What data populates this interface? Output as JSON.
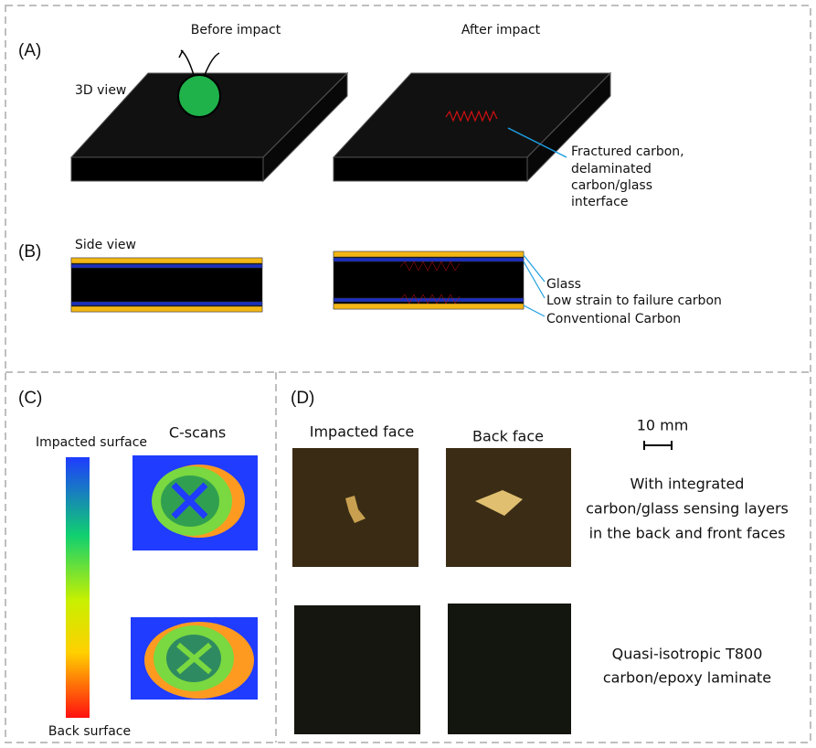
{
  "panel_a": {
    "label": "(A)",
    "before_title": "Before impact",
    "after_title": "After impact",
    "view_label": "3D view",
    "annotation_lines": [
      "Fractured carbon,",
      "delaminated",
      "carbon/glass",
      "interface"
    ]
  },
  "panel_b": {
    "label": "(B)",
    "view_label": "Side view",
    "layer_labels": [
      "Glass",
      "Low strain to failure carbon",
      "Conventional Carbon"
    ]
  },
  "panel_c": {
    "label": "(C)",
    "title": "C-scans",
    "top_label": "Impacted surface",
    "bottom_label": "Back surface"
  },
  "panel_d": {
    "label": "(D)",
    "column_titles": [
      "Impacted face",
      "Back face"
    ],
    "scale_label": "10 mm",
    "row_labels": [
      [
        "With integrated",
        "carbon/glass sensing layers",
        "in the back and front faces"
      ],
      [
        "Quasi-isotropic T800",
        "carbon/epoxy laminate"
      ]
    ]
  }
}
